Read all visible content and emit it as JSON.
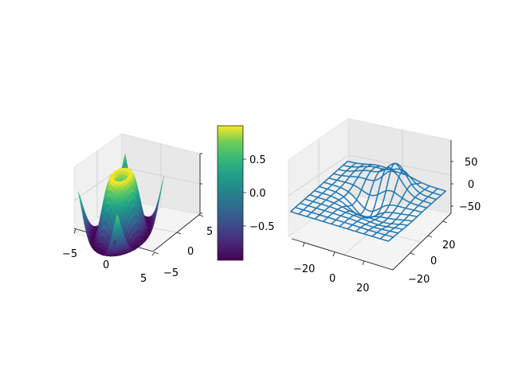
{
  "chart_data": [
    {
      "type": "surface",
      "colormap": "viridis",
      "x_ticks": [
        "−5",
        "0",
        "5"
      ],
      "y_ticks": [
        "−5",
        "0",
        "5"
      ],
      "xlim": [
        -5,
        5
      ],
      "ylim": [
        -5,
        5
      ],
      "zlim": [
        -1,
        1
      ],
      "function": "sin(sqrt(x^2 + y^2))",
      "colorbar": {
        "ticks": [
          "0.5",
          "0.0",
          "−0.5"
        ],
        "tick_values": [
          0.5,
          0.0,
          -0.5
        ],
        "range": [
          -1,
          1
        ]
      }
    },
    {
      "type": "wireframe",
      "color": "#1f77b4",
      "x_ticks": [
        "−20",
        "0",
        "20"
      ],
      "y_ticks": [
        "−20",
        "0",
        "20"
      ],
      "z_ticks": [
        "50",
        "0",
        "−50"
      ],
      "xlim": [
        -30,
        30
      ],
      "ylim": [
        -30,
        30
      ],
      "zlim": [
        -75,
        85
      ]
    }
  ]
}
